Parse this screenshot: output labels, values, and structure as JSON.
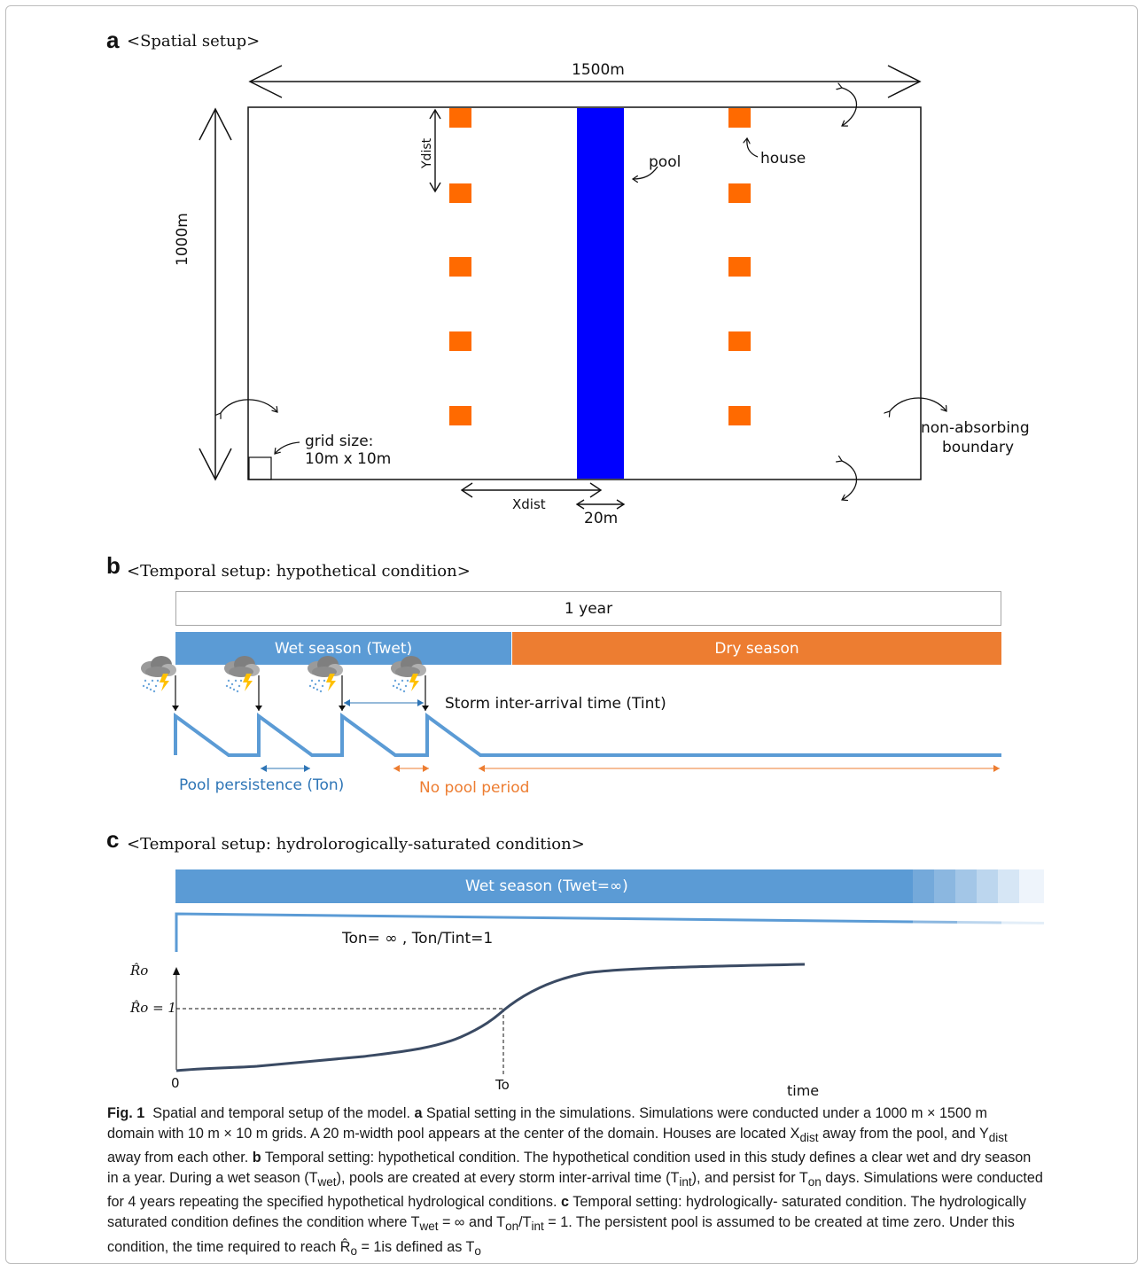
{
  "panel_a": {
    "letter": "a",
    "title": "<Spatial setup>",
    "width_label": "1500m",
    "height_label": "1000m",
    "ydist_label": "Ydist",
    "xdist_label": "Xdist",
    "pool_width_label": "20m",
    "pool_label": "pool",
    "house_label": "house",
    "grid_label_line1": "grid size:",
    "grid_label_line2": "10m x 10m",
    "boundary_label_line1": "non-absorbing",
    "boundary_label_line2": "boundary",
    "colors": {
      "pool": "#0000ff",
      "house": "#ff6a00"
    }
  },
  "panel_b": {
    "letter": "b",
    "title": "<Temporal setup: hypothetical condition>",
    "year_label": "1 year",
    "wet_label": "Wet season (Twet)",
    "dry_label": "Dry season",
    "storm_label": "Storm inter-arrival time (Tint)",
    "persistence_label": "Pool persistence (Ton)",
    "no_pool_label": "No pool period",
    "colors": {
      "wet": "#5b9bd5",
      "dry": "#ed7d31",
      "line": "#5b9bd5",
      "persistence_text": "#2e75b6",
      "no_pool_text": "#ed7d31"
    }
  },
  "panel_c": {
    "letter": "c",
    "title": "<Temporal setup: hydrolorogically-saturated condition>",
    "wet_label": "Wet season (Twet=∞)",
    "ton_label": "Ton= ∞ , Ton/Tint=1",
    "y_axis_label": "R̂o",
    "y_ref_label": "R̂o = 1",
    "x_zero": "0",
    "x_to": "To",
    "x_label": "time",
    "colors": {
      "wet": "#5b9bd5",
      "curve": "#3a4a63"
    }
  },
  "caption": {
    "fig": "Fig. 1",
    "title": "Spatial and temporal setup of the model.",
    "a_key": "a",
    "a_text_1": "Spatial setting in the simulations. Simulations were conducted under a 1000 m × 1500 m",
    "a_text_2": "domain with 10 m × 10 m grids. A 20 m-width pool appears at the center of the domain. Houses are located X",
    "sub_dist": "dist",
    "a_text_3": " away from the pool, and Y",
    "a_text_4": "away from each other. ",
    "b_key": "b",
    "b_text_1": " Temporal setting: hypothetical condition. The hypothetical condition used in this study defines a clear wet and dry season",
    "b_text_2": "in a year. During a wet season (T",
    "sub_wet": "wet",
    "b_text_3": "), pools are created at every storm inter-arrival time (T",
    "sub_int": "int",
    "b_text_4": "), and persist for T",
    "sub_on": "on",
    "b_text_5": " days. Simulations were conducted",
    "b_text_6": "for 4 years repeating the specified hypothetical hydrological conditions. ",
    "c_key": "c",
    "c_text_1": " Temporal setting: hydrologically- saturated condition. The hydrologically",
    "c_text_2": "saturated condition defines the condition where T",
    "c_text_3": " = ∞ and T",
    "c_text_4": "/T",
    "c_text_5": " = 1. The persistent pool is assumed to be created at time zero. Under this",
    "c_text_6": "condition, the time required to reach R̂",
    "sub_o": "o",
    "c_text_7": " = 1is defined as T"
  }
}
